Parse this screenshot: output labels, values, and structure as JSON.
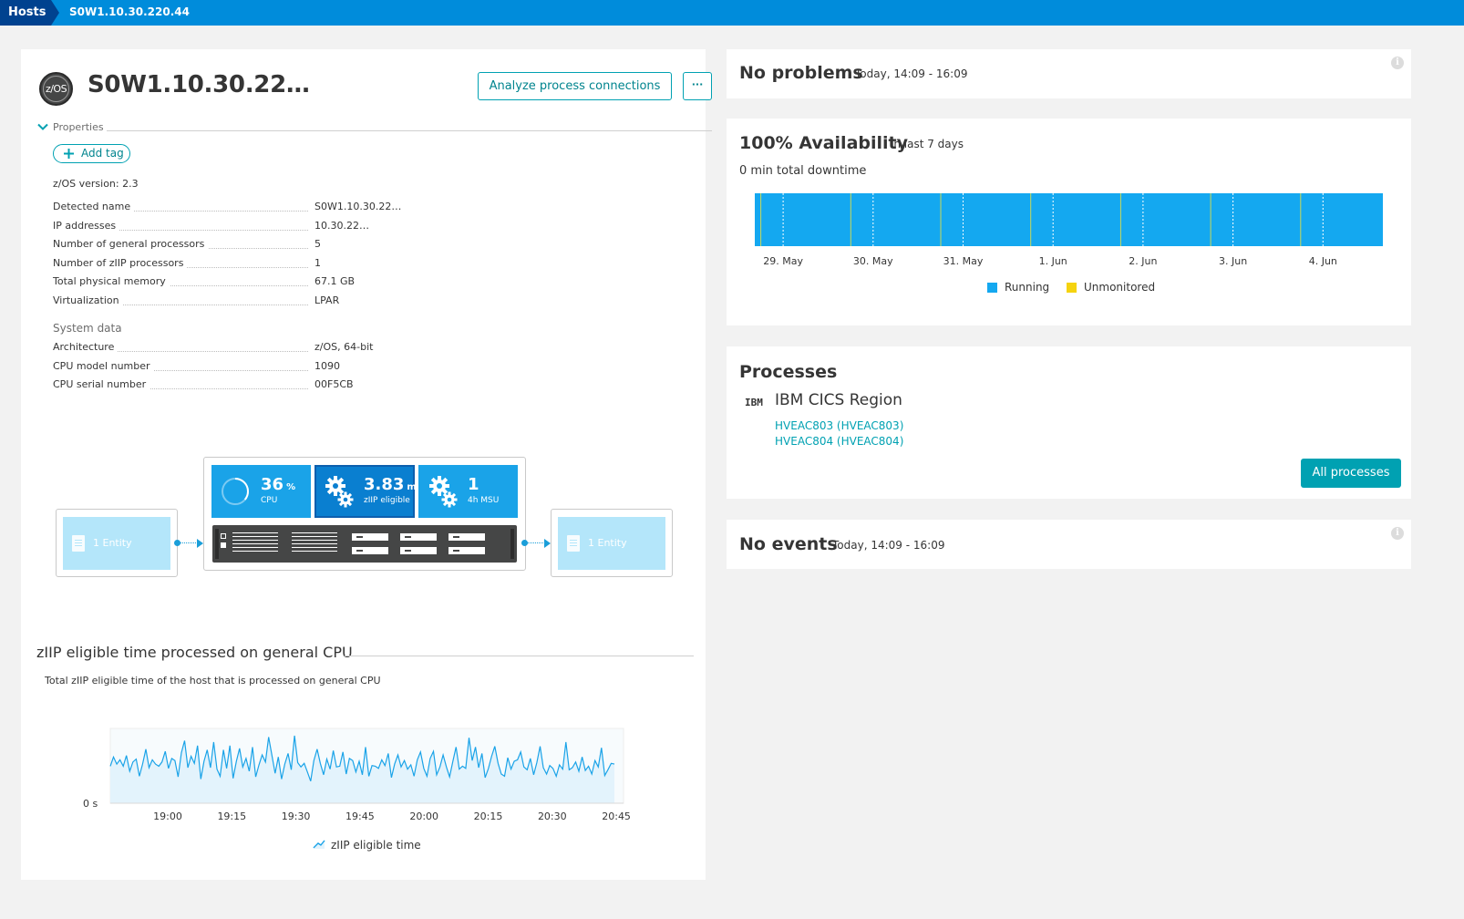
{
  "breadcrumb": {
    "home": "Hosts",
    "current": "S0W1.10.30.220.44"
  },
  "host": {
    "icon_label": "z/OS",
    "title": "S0W1.10.30.22…",
    "analyze_label": "Analyze process connections",
    "more_label": "···"
  },
  "properties": {
    "toggle_label": "Properties",
    "add_tag_label": "Add tag",
    "version_text": "z/OS version: 2.3",
    "rows": [
      {
        "key": "Detected name",
        "value": "S0W1.10.30.22…"
      },
      {
        "key": "IP addresses",
        "value": "10.30.22…"
      },
      {
        "key": "Number of general processors",
        "value": "5"
      },
      {
        "key": "Number of zIIP processors",
        "value": "1"
      },
      {
        "key": "Total physical memory",
        "value": "67.1 GB"
      },
      {
        "key": "Virtualization",
        "value": "LPAR"
      }
    ],
    "system_heading": "System data",
    "system_rows": [
      {
        "key": "Architecture",
        "value": "z/OS, 64-bit"
      },
      {
        "key": "CPU model number",
        "value": "1090"
      },
      {
        "key": "CPU serial number",
        "value": "00F5CB"
      }
    ]
  },
  "topology": {
    "left_entity": "1 Entity",
    "right_entity": "1 Entity",
    "cpu": {
      "value": "36",
      "unit": "%",
      "label": "CPU",
      "percent": 36
    },
    "ziip": {
      "value": "3.83",
      "unit": "m",
      "label": "zIIP eligible"
    },
    "msu": {
      "value": "1",
      "label": "4h MSU"
    },
    "colors": {
      "tile": "#1aa3e8",
      "tile_selected": "#0a7fd0",
      "entity": "#b4e6fa",
      "rack": "#454646"
    }
  },
  "ziip_chart": {
    "title": "zIIP eligible time processed on general CPU",
    "subtitle": "Total zIIP eligible time of the host that is processed on general CPU",
    "chart_data": {
      "type": "area",
      "title": "zIIP eligible time processed on general CPU",
      "series": [
        {
          "name": "zIIP eligible time",
          "values": [
            0.52,
            0.65,
            0.55,
            0.61,
            0.52,
            0.67,
            0.45,
            0.58,
            0.62,
            0.38,
            0.55,
            0.76,
            0.5,
            0.61,
            0.55,
            0.52,
            0.58,
            0.73,
            0.49,
            0.63,
            0.6,
            0.37,
            0.71,
            0.88,
            0.5,
            0.66,
            0.56,
            0.81,
            0.34,
            0.59,
            0.75,
            0.5,
            0.86,
            0.48,
            0.38,
            0.75,
            0.49,
            0.81,
            0.35,
            0.59,
            0.77,
            0.51,
            0.63,
            0.45,
            0.79,
            0.37,
            0.54,
            0.68,
            0.58,
            0.93,
            0.68,
            0.42,
            0.65,
            0.34,
            0.55,
            0.7,
            0.47,
            0.95,
            0.57,
            0.51,
            0.56,
            0.44,
            0.31,
            0.6,
            0.76,
            0.56,
            0.4,
            0.62,
            0.48,
            0.74,
            0.51,
            0.52,
            0.72,
            0.41,
            0.63,
            0.6,
            0.44,
            0.59,
            0.4,
            0.79,
            0.38,
            0.53,
            0.52,
            0.49,
            0.61,
            0.53,
            0.7,
            0.36,
            0.55,
            0.68,
            0.51,
            0.6,
            0.48,
            0.54,
            0.38,
            0.61,
            0.72,
            0.49,
            0.38,
            0.63,
            0.73,
            0.4,
            0.51,
            0.68,
            0.51,
            0.37,
            0.59,
            0.79,
            0.48,
            0.52,
            0.49,
            0.92,
            0.6,
            0.79,
            0.5,
            0.7,
            0.36,
            0.49,
            0.66,
            0.8,
            0.56,
            0.41,
            0.38,
            0.64,
            0.48,
            0.59,
            0.61,
            0.72,
            0.51,
            0.47,
            0.63,
            0.4,
            0.57,
            0.8,
            0.5,
            0.41,
            0.53,
            0.49,
            0.38,
            0.54,
            0.48,
            0.86,
            0.47,
            0.5,
            0.58,
            0.45,
            0.65,
            0.46,
            0.52,
            0.41,
            0.6,
            0.51,
            0.78,
            0.39,
            0.47,
            0.56,
            0.55
          ]
        }
      ],
      "xticks": [
        "19:00",
        "19:15",
        "19:30",
        "19:45",
        "20:00",
        "20:15",
        "20:30",
        "20:45"
      ],
      "ytick_label": "0 s",
      "legend": "zIIP eligible time",
      "grid": false,
      "legend_position": "bottom",
      "colors": {
        "line": "#1aa3e8",
        "fill": "#e3f3fc"
      }
    }
  },
  "problems": {
    "title": "No problems",
    "range": "Today, 14:09 - 16:09",
    "info": "i"
  },
  "availability": {
    "title": "100% Availability",
    "period": "in last 7 days",
    "downtime": "0 min total downtime",
    "chart_data": {
      "type": "bar",
      "categories": [
        "29. May",
        "30. May",
        "31. May",
        "1. Jun",
        "2. Jun",
        "3. Jun",
        "4. Jun"
      ],
      "series": [
        {
          "name": "Running",
          "values": [
            100,
            100,
            100,
            100,
            100,
            100,
            100
          ],
          "color": "#14a8f0"
        },
        {
          "name": "Unmonitored",
          "values": [
            0,
            0,
            0,
            0,
            0,
            0,
            0
          ],
          "color": "#f5d30f"
        }
      ],
      "legend_position": "bottom"
    }
  },
  "processes": {
    "title": "Processes",
    "vendor_logo": "IBM",
    "group_name": "IBM CICS Region",
    "links": [
      "HVEAC803 (HVEAC803)",
      "HVEAC804 (HVEAC804)"
    ],
    "all_label": "All processes"
  },
  "events": {
    "title": "No events",
    "range": "Today, 14:09 - 16:09",
    "info": "i"
  }
}
